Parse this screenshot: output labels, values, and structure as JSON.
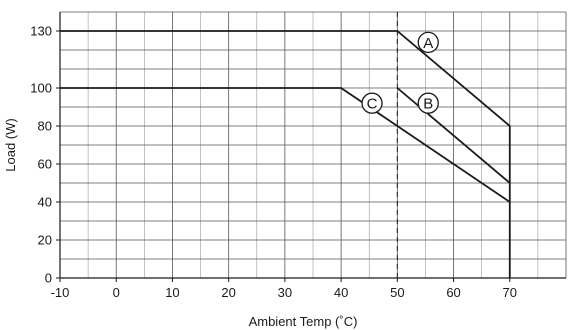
{
  "chart_data": {
    "type": "line",
    "xlabel": "Ambient Temp (˚C)",
    "ylabel": "Load (W)",
    "xlim": [
      -10,
      80
    ],
    "ylim": [
      0,
      140
    ],
    "x_ticks": [
      -10,
      0,
      10,
      20,
      30,
      40,
      50,
      60,
      70
    ],
    "y_ticks": [
      0,
      20,
      40,
      60,
      80,
      100,
      130
    ],
    "grid": true,
    "reference_line": {
      "x": 50,
      "style": "dashed"
    },
    "series": [
      {
        "name": "A",
        "points": [
          [
            -10,
            130
          ],
          [
            50,
            130
          ],
          [
            70,
            80
          ],
          [
            70,
            0
          ]
        ]
      },
      {
        "name": "B",
        "points": [
          [
            50,
            100
          ],
          [
            70,
            50
          ]
        ]
      },
      {
        "name": "C",
        "points": [
          [
            -10,
            100
          ],
          [
            40,
            100
          ],
          [
            70,
            40
          ]
        ]
      }
    ],
    "curve_labels": [
      {
        "text": "A",
        "x": 55.5,
        "y": 124
      },
      {
        "text": "B",
        "x": 55.5,
        "y": 92
      },
      {
        "text": "C",
        "x": 45.5,
        "y": 92
      }
    ]
  }
}
